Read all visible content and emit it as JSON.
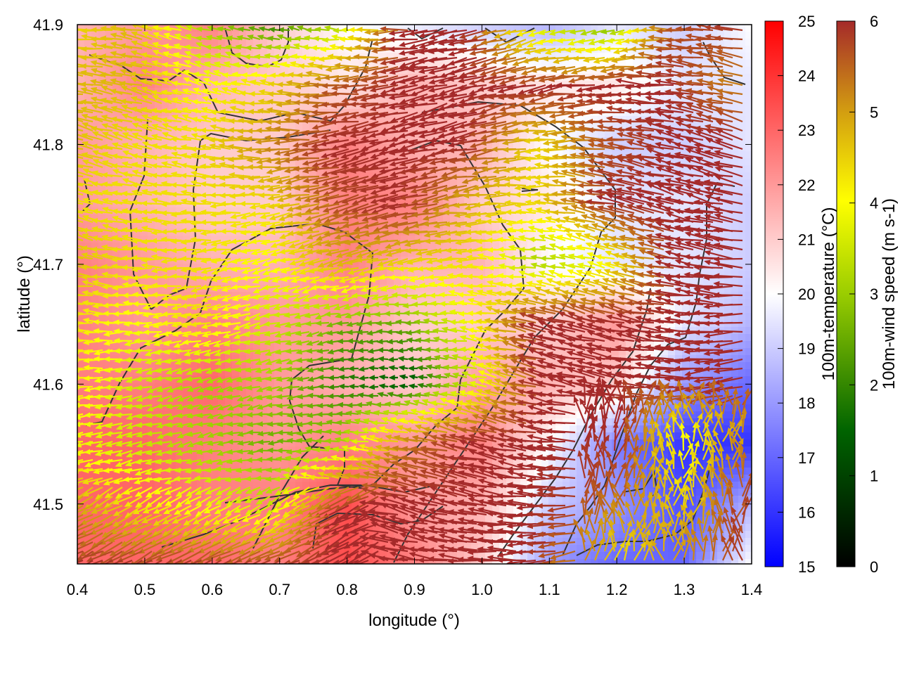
{
  "chart_data": {
    "type": "heatmap",
    "xlabel": "longitude (°)",
    "ylabel": "latitude (°)",
    "xlim": [
      0.4,
      1.4
    ],
    "ylim": [
      41.45,
      41.9
    ],
    "xticks": [
      "0.4",
      "0.5",
      "0.6",
      "0.7",
      "0.8",
      "0.9",
      "1.0",
      "1.1",
      "1.2",
      "1.3",
      "1.4"
    ],
    "yticks": [
      "41.5",
      "41.6",
      "41.7",
      "41.8",
      "41.9"
    ],
    "temperature_colorbar": {
      "label": "100m-temperature (°C)",
      "range": [
        15,
        25
      ],
      "ticks": [
        "15",
        "16",
        "17",
        "18",
        "19",
        "20",
        "21",
        "22",
        "23",
        "24",
        "25"
      ],
      "colors": [
        "#0000ff",
        "#ffffff",
        "#ff0000"
      ]
    },
    "wind_colorbar": {
      "label": "100m-wind speed (m s-1)",
      "range": [
        0,
        6
      ],
      "ticks": [
        "0",
        "1",
        "2",
        "3",
        "4",
        "5",
        "6"
      ],
      "colors": [
        "#000000",
        "#006400",
        "#9acd00",
        "#ffff00",
        "#d4a010",
        "#a52a2a"
      ]
    },
    "temperature_field_approx": [
      [
        21.5,
        22.0,
        22.5,
        21.0,
        20.0,
        19.5,
        19.0,
        18.5,
        19.5,
        19.0,
        20.0
      ],
      [
        21.5,
        22.5,
        21.5,
        21.0,
        20.5,
        21.5,
        21.0,
        20.5,
        20.5,
        19.5,
        19.5
      ],
      [
        22.0,
        21.5,
        21.0,
        21.0,
        22.5,
        21.5,
        21.5,
        20.0,
        19.0,
        19.0,
        19.5
      ],
      [
        22.0,
        21.5,
        21.0,
        21.0,
        22.5,
        22.5,
        21.0,
        20.5,
        19.5,
        19.5,
        19.0
      ],
      [
        22.5,
        22.0,
        21.5,
        21.5,
        22.5,
        21.5,
        21.5,
        20.0,
        19.5,
        19.5,
        19.0
      ],
      [
        22.5,
        22.0,
        22.5,
        22.0,
        22.0,
        21.0,
        21.0,
        21.0,
        22.0,
        19.5,
        18.5
      ],
      [
        22.5,
        22.5,
        23.0,
        22.0,
        21.5,
        21.0,
        22.0,
        21.5,
        21.0,
        18.0,
        17.0
      ],
      [
        23.0,
        23.0,
        22.5,
        22.0,
        22.5,
        22.0,
        22.5,
        20.0,
        17.5,
        16.0,
        16.0
      ],
      [
        23.0,
        23.0,
        22.5,
        22.5,
        23.5,
        22.0,
        21.5,
        19.0,
        18.0,
        16.5,
        18.5
      ],
      [
        23.0,
        23.0,
        23.0,
        22.5,
        23.5,
        22.5,
        21.0,
        18.0,
        17.0,
        17.0,
        20.0
      ]
    ],
    "wind_speed_field_approx": [
      [
        4.0,
        4.5,
        2.5,
        1.5,
        2.5,
        6.0,
        6.0,
        3.0,
        2.0,
        5.5,
        6.0
      ],
      [
        4.5,
        4.5,
        3.5,
        4.0,
        5.5,
        6.0,
        6.0,
        6.0,
        6.0,
        6.0,
        5.0
      ],
      [
        4.5,
        4.0,
        4.0,
        5.0,
        6.0,
        6.0,
        6.0,
        4.0,
        5.5,
        6.0,
        6.0
      ],
      [
        4.0,
        4.0,
        4.0,
        4.0,
        5.5,
        6.0,
        4.5,
        4.0,
        6.0,
        6.0,
        6.0
      ],
      [
        4.5,
        4.0,
        4.0,
        3.5,
        4.5,
        4.0,
        4.0,
        2.5,
        3.5,
        6.0,
        6.0
      ],
      [
        4.0,
        3.5,
        4.0,
        3.0,
        2.0,
        2.0,
        3.5,
        6.0,
        6.0,
        6.0,
        6.0
      ],
      [
        4.0,
        3.0,
        2.5,
        2.5,
        1.5,
        1.0,
        3.0,
        6.0,
        6.0,
        6.0,
        6.0
      ],
      [
        3.5,
        3.0,
        2.5,
        2.0,
        2.5,
        5.0,
        6.0,
        6.0,
        6.0,
        3.5,
        5.0
      ],
      [
        5.0,
        4.0,
        3.5,
        3.0,
        6.0,
        6.0,
        6.0,
        6.0,
        5.5,
        4.0,
        6.0
      ],
      [
        6.0,
        6.0,
        6.0,
        6.0,
        6.0,
        6.0,
        6.0,
        6.0,
        4.0,
        5.0,
        6.0
      ]
    ]
  }
}
